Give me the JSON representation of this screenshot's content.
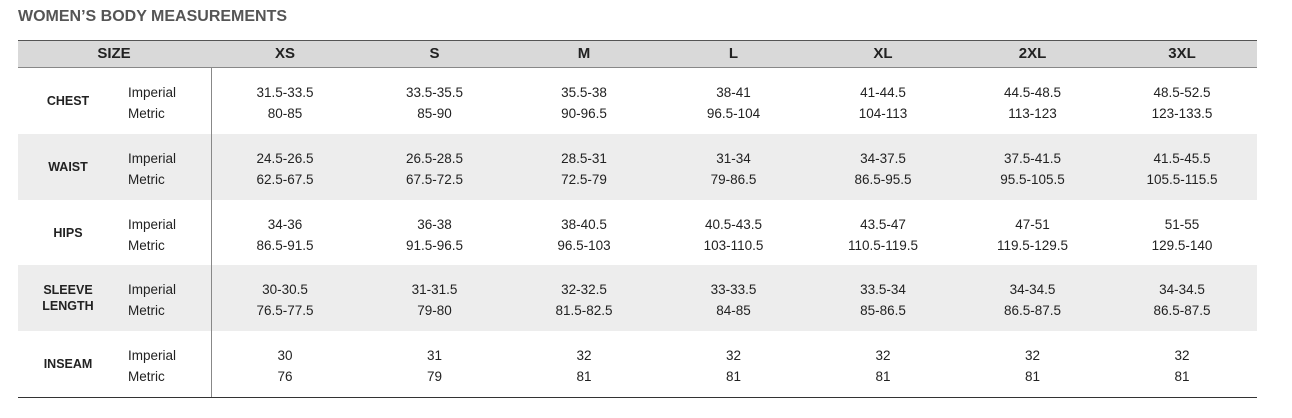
{
  "title": "WOMEN’S BODY MEASUREMENTS",
  "table": {
    "header": [
      "SIZE",
      "XS",
      "S",
      "M",
      "L",
      "XL",
      "2XL",
      "3XL"
    ],
    "rows": [
      {
        "label": "CHEST",
        "units": [
          "Imperial",
          "Metric"
        ],
        "imperial": [
          "31.5-33.5",
          "33.5-35.5",
          "35.5-38",
          "38-41",
          "41-44.5",
          "44.5-48.5",
          "48.5-52.5"
        ],
        "metric": [
          "80-85",
          "85-90",
          "90-96.5",
          "96.5-104",
          "104-113",
          "113-123",
          "123-133.5"
        ]
      },
      {
        "label": "WAIST",
        "units": [
          "Imperial",
          "Metric"
        ],
        "imperial": [
          "24.5-26.5",
          "26.5-28.5",
          "28.5-31",
          "31-34",
          "34-37.5",
          "37.5-41.5",
          "41.5-45.5"
        ],
        "metric": [
          "62.5-67.5",
          "67.5-72.5",
          "72.5-79",
          "79-86.5",
          "86.5-95.5",
          "95.5-105.5",
          "105.5-115.5"
        ]
      },
      {
        "label": "HIPS",
        "units": [
          "Imperial",
          "Metric"
        ],
        "imperial": [
          "34-36",
          "36-38",
          "38-40.5",
          "40.5-43.5",
          "43.5-47",
          "47-51",
          "51-55"
        ],
        "metric": [
          "86.5-91.5",
          "91.5-96.5",
          "96.5-103",
          "103-110.5",
          "110.5-119.5",
          "119.5-129.5",
          "129.5-140"
        ]
      },
      {
        "label": "SLEEVE LENGTH",
        "units": [
          "Imperial",
          "Metric"
        ],
        "imperial": [
          "30-30.5",
          "31-31.5",
          "32-32.5",
          "33-33.5",
          "33.5-34",
          "34-34.5",
          "34-34.5"
        ],
        "metric": [
          "76.5-77.5",
          "79-80",
          "81.5-82.5",
          "84-85",
          "85-86.5",
          "86.5-87.5",
          "86.5-87.5"
        ]
      },
      {
        "label": "INSEAM",
        "units": [
          "Imperial",
          "Metric"
        ],
        "imperial": [
          "30",
          "31",
          "32",
          "32",
          "32",
          "32",
          "32"
        ],
        "metric": [
          "76",
          "79",
          "81",
          "81",
          "81",
          "81",
          "81"
        ]
      }
    ]
  }
}
